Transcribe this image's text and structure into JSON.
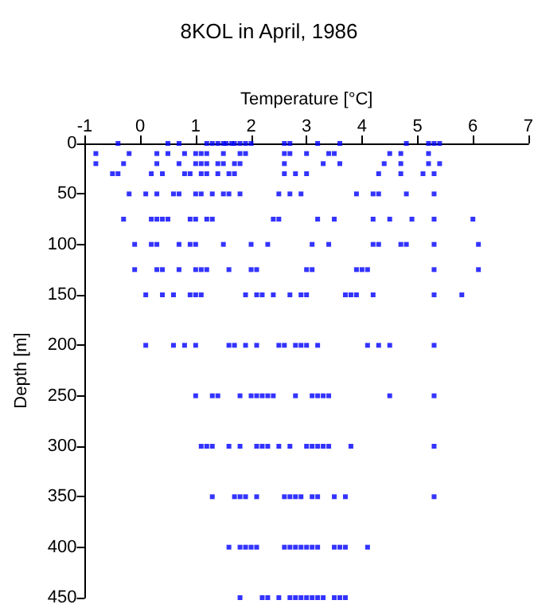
{
  "chart_data": {
    "type": "scatter",
    "title": "8KOL in April, 1986",
    "xlabel": "Temperature [°C]",
    "ylabel": "Depth [m]",
    "color": "#0000ff",
    "marker": "square",
    "grid": false,
    "xlim": [
      -1,
      7
    ],
    "xticks": [
      -1,
      0,
      1,
      2,
      3,
      4,
      5,
      6,
      7
    ],
    "ylim": [
      450,
      0
    ],
    "yticks": [
      0,
      50,
      100,
      150,
      200,
      250,
      300,
      350,
      400,
      450
    ],
    "x": [
      -0.4,
      0.5,
      0.7,
      1.2,
      1.3,
      1.4,
      1.5,
      1.55,
      1.65,
      1.7,
      1.8,
      1.9,
      2.0,
      2.6,
      2.7,
      3.2,
      3.6,
      4.8,
      5.2,
      5.3,
      5.4,
      -0.8,
      -0.2,
      0.3,
      0.5,
      0.8,
      1.0,
      1.1,
      1.2,
      1.5,
      1.8,
      1.9,
      2.6,
      2.7,
      3.0,
      3.4,
      3.5,
      4.5,
      4.7,
      5.2,
      -0.8,
      -0.3,
      0.3,
      0.7,
      1.0,
      1.1,
      1.2,
      1.4,
      1.5,
      1.7,
      1.8,
      2.6,
      3.3,
      3.6,
      4.4,
      4.7,
      5.2,
      5.4,
      -0.5,
      -0.4,
      0.2,
      0.4,
      0.8,
      0.9,
      1.1,
      1.2,
      1.4,
      1.6,
      1.7,
      2.6,
      2.8,
      3.0,
      4.3,
      4.7,
      5.1,
      5.3,
      -0.2,
      0.1,
      0.3,
      0.6,
      0.7,
      1.0,
      1.1,
      1.3,
      1.5,
      1.6,
      1.8,
      2.5,
      2.7,
      2.9,
      3.9,
      4.2,
      4.3,
      4.8,
      5.3,
      -0.3,
      0.2,
      0.3,
      0.4,
      0.5,
      0.9,
      1.0,
      1.2,
      1.3,
      2.4,
      2.5,
      3.2,
      3.5,
      4.2,
      4.5,
      4.9,
      5.3,
      6.0,
      -0.1,
      0.2,
      0.3,
      0.7,
      0.9,
      1.0,
      1.5,
      2.0,
      2.3,
      3.1,
      3.4,
      4.2,
      4.3,
      4.7,
      4.8,
      5.3,
      6.1,
      -0.1,
      0.3,
      0.4,
      0.7,
      1.0,
      1.1,
      1.2,
      1.6,
      2.0,
      2.1,
      3.0,
      3.1,
      3.9,
      4.0,
      4.1,
      5.3,
      6.1,
      0.1,
      0.4,
      0.6,
      0.9,
      1.0,
      1.1,
      1.9,
      2.1,
      2.2,
      2.4,
      2.7,
      2.9,
      3.0,
      3.7,
      3.8,
      3.9,
      4.2,
      5.3,
      5.8,
      0.1,
      0.6,
      0.8,
      1.0,
      1.6,
      1.7,
      1.9,
      2.1,
      2.5,
      2.6,
      2.8,
      2.9,
      3.0,
      3.2,
      4.1,
      4.3,
      4.5,
      5.3,
      1.0,
      1.3,
      1.4,
      1.8,
      2.0,
      2.1,
      2.2,
      2.3,
      2.4,
      2.8,
      3.1,
      3.2,
      3.3,
      3.4,
      4.5,
      5.3,
      1.1,
      1.2,
      1.3,
      1.6,
      1.8,
      2.1,
      2.2,
      2.3,
      2.5,
      2.7,
      3.0,
      3.1,
      3.2,
      3.3,
      3.4,
      3.8,
      5.3,
      1.3,
      1.7,
      1.8,
      1.9,
      2.1,
      2.6,
      2.7,
      2.8,
      2.9,
      3.1,
      3.2,
      3.5,
      3.7,
      5.3,
      1.6,
      1.8,
      1.9,
      2.0,
      2.1,
      2.6,
      2.7,
      2.8,
      2.9,
      3.0,
      3.1,
      3.2,
      3.5,
      3.6,
      3.7,
      4.1,
      1.8,
      2.2,
      2.3,
      2.5,
      2.7,
      2.8,
      2.9,
      3.0,
      3.1,
      3.2,
      3.3,
      3.5,
      3.6,
      3.7
    ],
    "values": [
      0,
      0,
      0,
      0,
      0,
      0,
      0,
      0,
      0,
      0,
      0,
      0,
      0,
      0,
      0,
      0,
      0,
      0,
      0,
      0,
      0,
      10,
      10,
      10,
      10,
      10,
      10,
      10,
      10,
      10,
      10,
      10,
      10,
      10,
      10,
      10,
      10,
      10,
      10,
      10,
      20,
      20,
      20,
      20,
      20,
      20,
      20,
      20,
      20,
      20,
      20,
      20,
      20,
      20,
      20,
      20,
      20,
      20,
      30,
      30,
      30,
      30,
      30,
      30,
      30,
      30,
      30,
      30,
      30,
      30,
      30,
      30,
      30,
      30,
      30,
      30,
      50,
      50,
      50,
      50,
      50,
      50,
      50,
      50,
      50,
      50,
      50,
      50,
      50,
      50,
      50,
      50,
      50,
      50,
      50,
      75,
      75,
      75,
      75,
      75,
      75,
      75,
      75,
      75,
      75,
      75,
      75,
      75,
      75,
      75,
      75,
      75,
      75,
      100,
      100,
      100,
      100,
      100,
      100,
      100,
      100,
      100,
      100,
      100,
      100,
      100,
      100,
      100,
      100,
      100,
      125,
      125,
      125,
      125,
      125,
      125,
      125,
      125,
      125,
      125,
      125,
      125,
      125,
      125,
      125,
      125,
      125,
      150,
      150,
      150,
      150,
      150,
      150,
      150,
      150,
      150,
      150,
      150,
      150,
      150,
      150,
      150,
      150,
      150,
      150,
      150,
      200,
      200,
      200,
      200,
      200,
      200,
      200,
      200,
      200,
      200,
      200,
      200,
      200,
      200,
      200,
      200,
      200,
      200,
      250,
      250,
      250,
      250,
      250,
      250,
      250,
      250,
      250,
      250,
      250,
      250,
      250,
      250,
      250,
      250,
      300,
      300,
      300,
      300,
      300,
      300,
      300,
      300,
      300,
      300,
      300,
      300,
      300,
      300,
      300,
      300,
      300,
      350,
      350,
      350,
      350,
      350,
      350,
      350,
      350,
      350,
      350,
      350,
      350,
      350,
      350,
      400,
      400,
      400,
      400,
      400,
      400,
      400,
      400,
      400,
      400,
      400,
      400,
      400,
      400,
      400,
      400,
      450,
      450,
      450,
      450,
      450,
      450,
      450,
      450,
      450,
      450,
      450,
      450,
      450,
      450
    ]
  }
}
